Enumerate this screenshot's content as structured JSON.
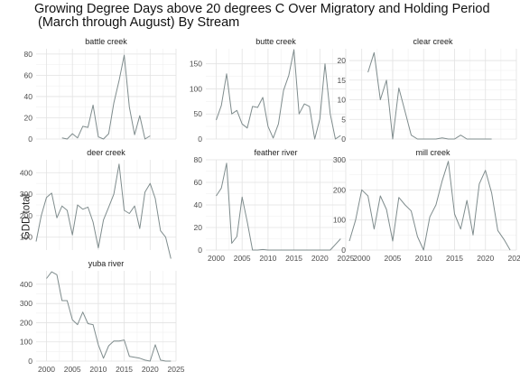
{
  "title": "Growing Degree Days above 20 degrees C Over Migratory and Holding Period\n (March through August) By Stream",
  "chart_data": {
    "type": "line",
    "title": "Growing Degree Days above 20 degrees C Over Migratory and Holding Period\n (March through August) By Stream",
    "xlabel": "",
    "ylabel": "GDD total",
    "xlim": [
      1998,
      2025
    ],
    "x_ticks": [
      2000,
      2005,
      2010,
      2015,
      2020,
      2025
    ],
    "line_color": "#7f8c8d",
    "grid": true,
    "facet_layout": "3 columns, free y scales",
    "panels": [
      {
        "name": "battle creek",
        "ylim": [
          0,
          85
        ],
        "y_ticks": [
          0,
          20,
          40,
          60,
          80
        ],
        "x": [
          2003,
          2004,
          2005,
          2006,
          2007,
          2008,
          2009,
          2010,
          2011,
          2012,
          2013,
          2014,
          2015,
          2016,
          2017,
          2018,
          2019,
          2020
        ],
        "values": [
          1,
          0,
          5,
          1,
          12,
          11,
          32,
          2,
          0,
          5,
          34,
          55,
          79,
          30,
          4,
          22,
          0,
          3
        ]
      },
      {
        "name": "butte creek",
        "ylim": [
          0,
          180
        ],
        "y_ticks": [
          0,
          50,
          100,
          150
        ],
        "x": [
          2000,
          2001,
          2002,
          2003,
          2004,
          2005,
          2006,
          2007,
          2008,
          2009,
          2010,
          2011,
          2012,
          2013,
          2014,
          2015,
          2016,
          2017,
          2018,
          2019,
          2020,
          2021,
          2022,
          2023,
          2024
        ],
        "values": [
          38,
          67,
          130,
          50,
          57,
          30,
          22,
          65,
          63,
          83,
          25,
          2,
          30,
          97,
          127,
          178,
          50,
          70,
          65,
          0,
          40,
          150,
          50,
          0,
          7
        ]
      },
      {
        "name": "clear creek",
        "ylim": [
          0,
          23
        ],
        "y_ticks": [
          0,
          5,
          10,
          15,
          20
        ],
        "x": [
          2001,
          2002,
          2003,
          2004,
          2005,
          2006,
          2007,
          2008,
          2009,
          2010,
          2011,
          2012,
          2013,
          2014,
          2015,
          2016,
          2017,
          2018,
          2019,
          2020,
          2021
        ],
        "values": [
          17,
          22,
          10,
          15,
          0,
          13,
          7,
          1,
          0,
          0,
          0,
          0,
          0.3,
          0,
          0,
          1,
          0,
          0,
          0,
          0,
          0
        ]
      },
      {
        "name": "deer creek",
        "ylim": [
          40,
          460
        ],
        "y_ticks": [
          100,
          200,
          300,
          400
        ],
        "x": [
          1998,
          1999,
          2000,
          2001,
          2002,
          2003,
          2004,
          2005,
          2006,
          2007,
          2008,
          2009,
          2010,
          2011,
          2012,
          2013,
          2014,
          2015,
          2016,
          2017,
          2018,
          2019,
          2020,
          2021,
          2022,
          2023,
          2024
        ],
        "values": [
          80,
          200,
          285,
          305,
          190,
          245,
          225,
          110,
          250,
          230,
          240,
          170,
          50,
          180,
          240,
          300,
          440,
          225,
          210,
          245,
          140,
          310,
          350,
          280,
          130,
          100,
          0
        ]
      },
      {
        "name": "feather river",
        "ylim": [
          0,
          80
        ],
        "y_ticks": [
          0,
          20,
          40,
          60,
          80
        ],
        "x": [
          2000,
          2001,
          2002,
          2003,
          2004,
          2005,
          2006,
          2007,
          2008,
          2009,
          2010,
          2011,
          2012,
          2013,
          2014,
          2015,
          2016,
          2017,
          2018,
          2019,
          2020,
          2021,
          2022,
          2023,
          2024
        ],
        "values": [
          48,
          55,
          77,
          6,
          12,
          47,
          25,
          0,
          0,
          0.5,
          0,
          0,
          0,
          0,
          0,
          0,
          0,
          0,
          0,
          0,
          0,
          0,
          0,
          5,
          10
        ]
      },
      {
        "name": "mill creek",
        "ylim": [
          0,
          300
        ],
        "y_ticks": [
          0,
          100,
          200,
          300
        ],
        "x": [
          1998,
          1999,
          2000,
          2001,
          2002,
          2003,
          2004,
          2005,
          2006,
          2007,
          2008,
          2009,
          2010,
          2011,
          2012,
          2013,
          2014,
          2015,
          2016,
          2017,
          2018,
          2019,
          2020,
          2021,
          2022,
          2023,
          2024
        ],
        "values": [
          30,
          100,
          200,
          180,
          70,
          180,
          135,
          30,
          175,
          150,
          130,
          45,
          0,
          110,
          150,
          230,
          295,
          120,
          70,
          165,
          50,
          220,
          265,
          190,
          65,
          35,
          0
        ]
      },
      {
        "name": "yuba river",
        "ylim": [
          0,
          470
        ],
        "y_ticks": [
          0,
          100,
          200,
          300,
          400
        ],
        "x": [
          2000,
          2001,
          2002,
          2003,
          2004,
          2005,
          2006,
          2007,
          2008,
          2009,
          2010,
          2011,
          2012,
          2013,
          2014,
          2015,
          2016,
          2017,
          2018,
          2019,
          2020,
          2021,
          2022,
          2023,
          2024
        ],
        "values": [
          430,
          465,
          450,
          315,
          315,
          215,
          190,
          255,
          195,
          190,
          85,
          15,
          80,
          105,
          105,
          110,
          25,
          20,
          15,
          5,
          0,
          85,
          5,
          0,
          0
        ]
      }
    ]
  }
}
